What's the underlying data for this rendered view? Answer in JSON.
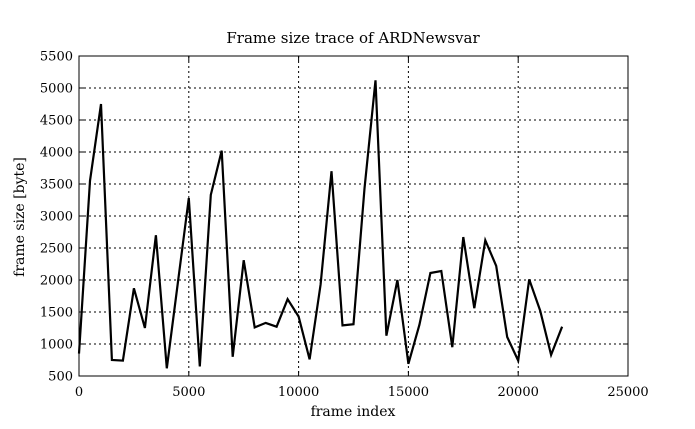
{
  "chart_data": {
    "type": "line",
    "title": "Frame size trace of ARDNewsvar",
    "xlabel": "frame index",
    "ylabel": "frame size [byte]",
    "xlim": [
      0,
      25000
    ],
    "ylim": [
      500,
      5500
    ],
    "grid": true,
    "x_ticks": [
      0,
      5000,
      10000,
      15000,
      20000,
      25000
    ],
    "y_ticks": [
      500,
      1000,
      1500,
      2000,
      2500,
      3000,
      3500,
      4000,
      4500,
      5000,
      5500
    ],
    "series": [
      {
        "x": [
          0,
          500,
          1000,
          1500,
          2000,
          2500,
          3000,
          3500,
          4000,
          4500,
          5000,
          5500,
          6000,
          6500,
          7000,
          7500,
          8000,
          8500,
          9000,
          9500,
          10000,
          10500,
          11000,
          11500,
          12000,
          12500,
          13000,
          13500,
          14000,
          14500,
          15000,
          15500,
          16000,
          16500,
          17000,
          17500,
          18000,
          18500,
          19000,
          19500,
          20000,
          20500,
          21000,
          21500,
          22000
        ],
        "y": [
          850,
          3550,
          4750,
          750,
          740,
          1870,
          1250,
          2700,
          620,
          1950,
          3280,
          650,
          3330,
          4020,
          800,
          2310,
          1260,
          1330,
          1270,
          1700,
          1430,
          760,
          1930,
          3700,
          1290,
          1310,
          3430,
          5120,
          1130,
          2000,
          690,
          1300,
          2110,
          2140,
          950,
          2670,
          1560,
          2620,
          2220,
          1110,
          740,
          2010,
          1520,
          830,
          1270
        ]
      }
    ]
  }
}
